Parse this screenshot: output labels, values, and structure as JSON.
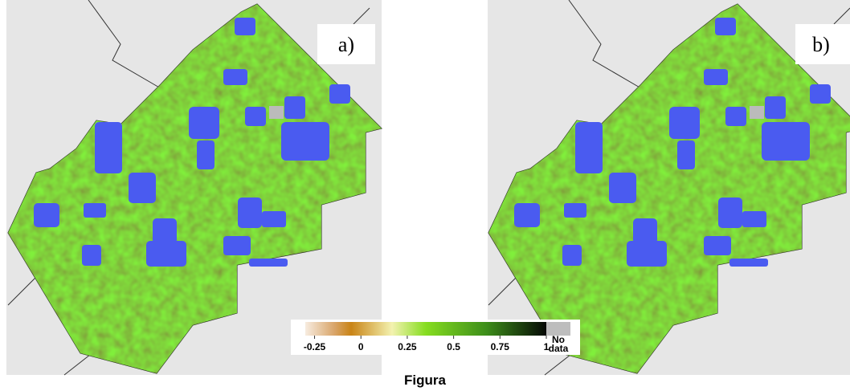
{
  "panels": [
    {
      "label": "a)"
    },
    {
      "label": "b)"
    }
  ],
  "colorbar": {
    "range": [
      -0.3,
      1
    ],
    "ticks": [
      -0.25,
      0,
      0.25,
      0.5,
      0.75,
      1
    ],
    "no_data_label": "No data"
  },
  "caption": "Figura"
}
